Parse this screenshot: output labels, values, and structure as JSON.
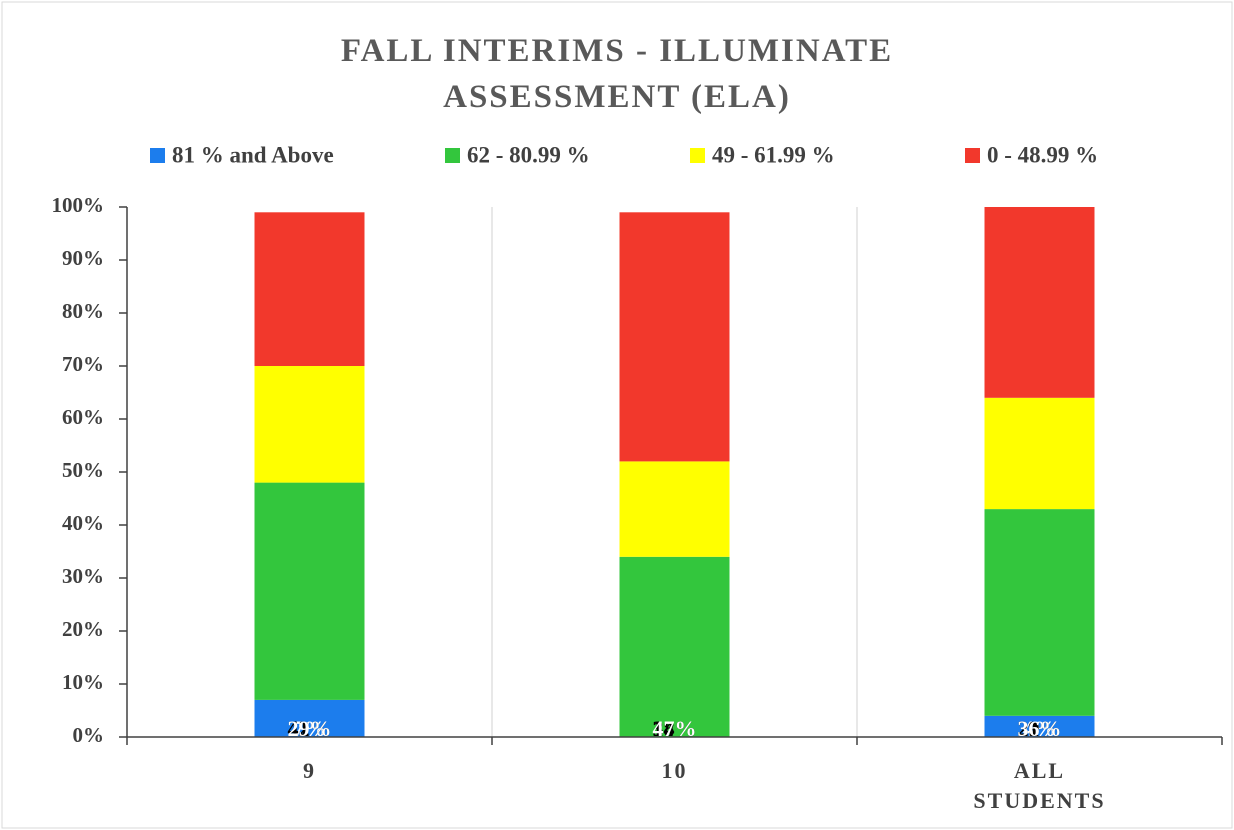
{
  "chart_data": {
    "type": "stacked_bar",
    "title": "FALL INTERIMS - ILLUMINATE ASSESSMENT (ELA)",
    "categories": [
      "9",
      "10",
      "ALL STUDENTS"
    ],
    "series": [
      {
        "name": "81 % and Above",
        "color": "#1c7ded",
        "label_color": "#ffffff",
        "values": [
          7,
          0,
          4
        ],
        "value_labels": [
          "7%",
          "0%",
          "4%"
        ]
      },
      {
        "name": "62 - 80.99 %",
        "color": "#33c63d",
        "label_color": "#000000",
        "values": [
          41,
          34,
          39
        ],
        "value_labels": [
          "41%",
          "34%",
          "39%"
        ]
      },
      {
        "name": "49 - 61.99 %",
        "color": "#ffff00",
        "label_color": "#000000",
        "values": [
          22,
          18,
          21
        ],
        "value_labels": [
          "22%",
          "18%",
          "21%"
        ]
      },
      {
        "name": "0 - 48.99 %",
        "color": "#f2382c",
        "label_color": "#ffffff",
        "values": [
          29,
          47,
          36
        ],
        "value_labels": [
          "29%",
          "47%",
          "36%"
        ]
      }
    ],
    "ylim": [
      0,
      100
    ],
    "yticks": [
      {
        "value": 0,
        "label": "0%"
      },
      {
        "value": 10,
        "label": "10%"
      },
      {
        "value": 20,
        "label": "20%"
      },
      {
        "value": 30,
        "label": "30%"
      },
      {
        "value": 40,
        "label": "40%"
      },
      {
        "value": 50,
        "label": "50%"
      },
      {
        "value": 60,
        "label": "60%"
      },
      {
        "value": 70,
        "label": "70%"
      },
      {
        "value": 80,
        "label": "80%"
      },
      {
        "value": 90,
        "label": "90%"
      },
      {
        "value": 100,
        "label": "100%"
      }
    ],
    "legend": "top"
  }
}
